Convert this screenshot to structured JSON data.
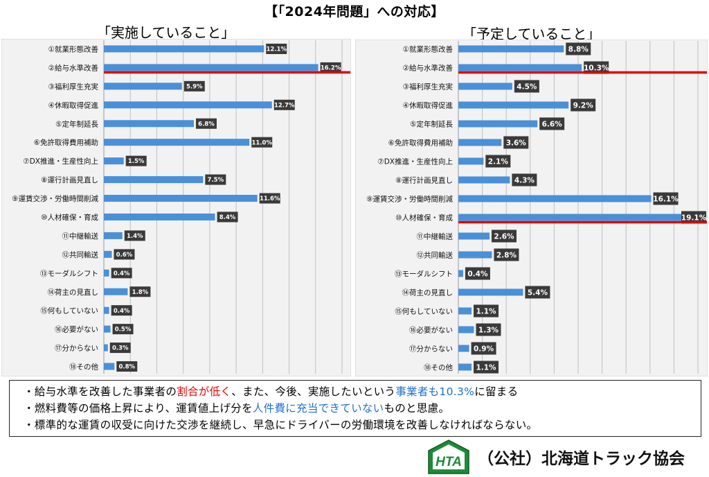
{
  "page": {
    "title": "【「2024年問題」への対応】",
    "organization": "（公社）北海道トラック協会",
    "logo_text": "HTA"
  },
  "colors": {
    "bar": "#4a90d9",
    "label_bg": "#3a3a3a",
    "label_fg": "#ffffff",
    "highlight": "#e00000",
    "plot_bg": "#f2f2f2",
    "grid": "#bfbfbf"
  },
  "chart_data": [
    {
      "type": "bar",
      "orientation": "horizontal",
      "title": "「実施していること」",
      "categories": [
        "①就業形態改善",
        "②給与水準改善",
        "③福利厚生充実",
        "④休暇取得促進",
        "⑤定年制延長",
        "⑥免許取得費用補助",
        "⑦DX推進・生産性向上",
        "⑧運行計画見直し",
        "⑨運賃交渉・労働時間削減",
        "⑩人材確保・育成",
        "⑪中継輸送",
        "⑫共同輸送",
        "⑬モーダルシフト",
        "⑭荷主の見直し",
        "⑮何もしていない",
        "⑯必要がない",
        "⑰分からない",
        "⑱その他"
      ],
      "values": [
        12.1,
        16.2,
        5.9,
        12.7,
        6.8,
        11.0,
        1.5,
        7.5,
        11.6,
        8.4,
        1.4,
        0.6,
        0.4,
        1.8,
        0.4,
        0.5,
        0.3,
        0.8
      ],
      "data_labels": [
        "12.1%",
        "16.2%",
        "5.9%",
        "12.7%",
        "6.8%",
        "11.0%",
        "1.5%",
        "7.5%",
        "11.6%",
        "8.4%",
        "1.4%",
        "0.6%",
        "0.4%",
        "1.8%",
        "0.4%",
        "0.5%",
        "0.3%",
        "0.8%"
      ],
      "xlim": [
        0,
        18
      ],
      "grid": true,
      "highlight_category_index": 1
    },
    {
      "type": "bar",
      "orientation": "horizontal",
      "title": "「予定していること」",
      "categories": [
        "①就業形態改善",
        "②給与水準改善",
        "③福利厚生充実",
        "④休暇取得促進",
        "⑤定年制延長",
        "⑥免許取得費用補助",
        "⑦DX推進・生産性向上",
        "⑧運行計画見直し",
        "⑨運賃交渉・労働時間削減",
        "⑩人材確保・育成",
        "⑪中継輸送",
        "⑫共同輸送",
        "⑬モーダルシフト",
        "⑭荷主の見直し",
        "⑮何もしていない",
        "⑯必要がない",
        "⑰分からない",
        "⑱その他"
      ],
      "values": [
        8.8,
        10.3,
        4.5,
        9.2,
        6.6,
        3.6,
        2.1,
        4.3,
        16.1,
        19.1,
        2.6,
        2.8,
        0.4,
        5.4,
        1.1,
        1.3,
        0.9,
        1.1
      ],
      "data_labels": [
        "8.8%",
        "10.3%",
        "4.5%",
        "9.2%",
        "6.6%",
        "3.6%",
        "2.1%",
        "4.3%",
        "16.1%",
        "19.1%",
        "2.6%",
        "2.8%",
        "0.4%",
        "5.4%",
        "1.1%",
        "1.3%",
        "0.9%",
        "1.1%"
      ],
      "xlim": [
        0,
        20
      ],
      "grid": true,
      "highlight_category_index": [
        1,
        9
      ]
    }
  ],
  "notes": [
    {
      "segments": [
        {
          "text": "・給与水準を改善した事業者の",
          "color": "default"
        },
        {
          "text": "割合が低く",
          "color": "red"
        },
        {
          "text": "、また、今後、実施したいという",
          "color": "default"
        },
        {
          "text": "事業者も10.3%",
          "color": "blue"
        },
        {
          "text": "に留まる",
          "color": "default"
        }
      ]
    },
    {
      "segments": [
        {
          "text": "・燃料費等の価格上昇により、運賃値上げ分を",
          "color": "default"
        },
        {
          "text": "人件費に充当できていない",
          "color": "blue"
        },
        {
          "text": "ものと思慮。",
          "color": "default"
        }
      ]
    },
    {
      "segments": [
        {
          "text": "・標準的な運賃の収受に向けた交渉を継続し、早急にドライバーの労働環境を改善しなければならない。",
          "color": "default"
        }
      ]
    }
  ]
}
